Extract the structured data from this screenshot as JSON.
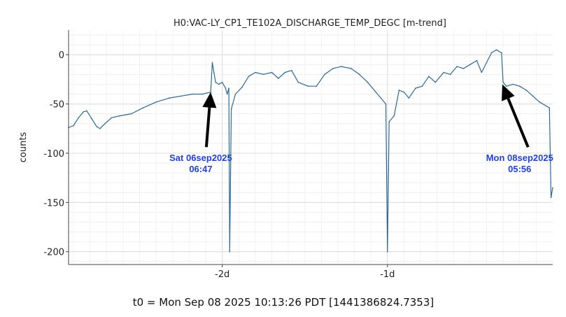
{
  "chart_data": {
    "type": "line",
    "title": "H0:VAC-LY_CP1_TE102A_DISCHARGE_TEMP_DEGC [m-trend]",
    "ylabel": "counts",
    "xlabel": "t0 = Mon Sep 08 2025 10:13:26 PDT [1441386824.7353]",
    "xlim": [
      -2.93,
      0
    ],
    "ylim": [
      -213,
      25
    ],
    "x_ticks": [
      {
        "value": -2,
        "label": "-2d"
      },
      {
        "value": -1,
        "label": "-1d"
      }
    ],
    "y_ticks": [
      {
        "value": 0,
        "label": "0"
      },
      {
        "value": -50,
        "label": "-50"
      },
      {
        "value": -100,
        "label": "-100"
      },
      {
        "value": -150,
        "label": "-150"
      },
      {
        "value": -200,
        "label": "-200"
      }
    ],
    "grid": true,
    "line_color": "#2a6a9c",
    "series": [
      {
        "values": [
          [
            -2.93,
            -74
          ],
          [
            -2.9,
            -72
          ],
          [
            -2.87,
            -64
          ],
          [
            -2.84,
            -58
          ],
          [
            -2.82,
            -57
          ],
          [
            -2.79,
            -65
          ],
          [
            -2.76,
            -73
          ],
          [
            -2.74,
            -75
          ],
          [
            -2.71,
            -70
          ],
          [
            -2.67,
            -64
          ],
          [
            -2.62,
            -62
          ],
          [
            -2.55,
            -60
          ],
          [
            -2.48,
            -54
          ],
          [
            -2.4,
            -48
          ],
          [
            -2.32,
            -44
          ],
          [
            -2.25,
            -42
          ],
          [
            -2.18,
            -40
          ],
          [
            -2.12,
            -40
          ],
          [
            -2.07,
            -38
          ],
          [
            -2.06,
            -8
          ],
          [
            -2.05,
            -18
          ],
          [
            -2.04,
            -28
          ],
          [
            -2.02,
            -30
          ],
          [
            -2.0,
            -28
          ],
          [
            -1.98,
            -34
          ],
          [
            -1.97,
            -40
          ],
          [
            -1.96,
            -34
          ],
          [
            -1.955,
            -200
          ],
          [
            -1.945,
            -55
          ],
          [
            -1.92,
            -40
          ],
          [
            -1.88,
            -33
          ],
          [
            -1.84,
            -22
          ],
          [
            -1.8,
            -18
          ],
          [
            -1.75,
            -20
          ],
          [
            -1.7,
            -18
          ],
          [
            -1.66,
            -24
          ],
          [
            -1.62,
            -18
          ],
          [
            -1.58,
            -16
          ],
          [
            -1.54,
            -28
          ],
          [
            -1.48,
            -32
          ],
          [
            -1.43,
            -32
          ],
          [
            -1.38,
            -20
          ],
          [
            -1.33,
            -14
          ],
          [
            -1.28,
            -12
          ],
          [
            -1.22,
            -14
          ],
          [
            -1.17,
            -20
          ],
          [
            -1.12,
            -28
          ],
          [
            -1.07,
            -38
          ],
          [
            -1.01,
            -50
          ],
          [
            -1.0,
            -200
          ],
          [
            -0.99,
            -68
          ],
          [
            -0.96,
            -62
          ],
          [
            -0.93,
            -36
          ],
          [
            -0.9,
            -38
          ],
          [
            -0.87,
            -44
          ],
          [
            -0.83,
            -34
          ],
          [
            -0.79,
            -32
          ],
          [
            -0.75,
            -22
          ],
          [
            -0.71,
            -28
          ],
          [
            -0.66,
            -18
          ],
          [
            -0.62,
            -20
          ],
          [
            -0.58,
            -12
          ],
          [
            -0.54,
            -14
          ],
          [
            -0.5,
            -10
          ],
          [
            -0.46,
            -6
          ],
          [
            -0.43,
            -18
          ],
          [
            -0.4,
            -8
          ],
          [
            -0.37,
            2
          ],
          [
            -0.34,
            5
          ],
          [
            -0.31,
            2
          ],
          [
            -0.3,
            -28
          ],
          [
            -0.28,
            -32
          ],
          [
            -0.24,
            -30
          ],
          [
            -0.2,
            -32
          ],
          [
            -0.16,
            -36
          ],
          [
            -0.12,
            -42
          ],
          [
            -0.08,
            -48
          ],
          [
            -0.04,
            -52
          ],
          [
            -0.02,
            -54
          ],
          [
            -0.01,
            -145
          ],
          [
            0.0,
            -135
          ]
        ]
      }
    ],
    "annotations": [
      {
        "line1": "Sat 06sep2025",
        "line2": "06:47",
        "x": -2.13,
        "y": -108,
        "arrow_x": -2.07,
        "arrow_y": -38
      },
      {
        "line1": "Mon 08sep2025",
        "line2": "05:56",
        "x": -0.2,
        "y": -108,
        "arrow_x": -0.305,
        "arrow_y": -30
      }
    ]
  }
}
